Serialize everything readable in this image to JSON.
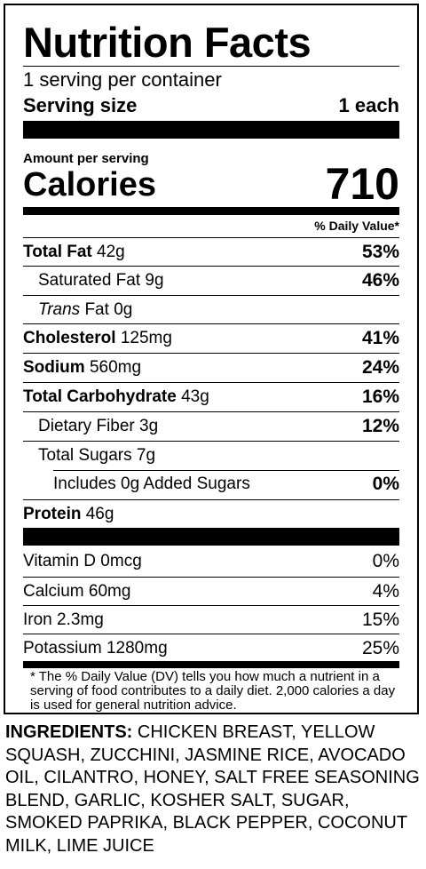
{
  "title": "Nutrition Facts",
  "servings_per_container": "1 serving per container",
  "serving_size": {
    "label": "Serving size",
    "value": "1 each"
  },
  "amount_per_serving": "Amount per serving",
  "calories": {
    "label": "Calories",
    "value": "710"
  },
  "daily_value_header": "% Daily Value*",
  "nutrients": [
    {
      "name": "Total Fat",
      "amount": "42g",
      "dv": "53%"
    },
    {
      "name": "Saturated Fat",
      "amount": "9g",
      "dv": "46%"
    },
    {
      "name_italic": "Trans",
      "name": "Fat",
      "amount": "0g",
      "dv": ""
    },
    {
      "name": "Cholesterol",
      "amount": "125mg",
      "dv": "41%"
    },
    {
      "name": "Sodium",
      "amount": "560mg",
      "dv": "24%"
    },
    {
      "name": "Total Carbohydrate",
      "amount": "43g",
      "dv": "16%"
    },
    {
      "name": "Dietary Fiber",
      "amount": "3g",
      "dv": "12%"
    },
    {
      "name": "Total Sugars",
      "amount": "7g",
      "dv": ""
    },
    {
      "name": "Includes 0g Added Sugars",
      "amount": "",
      "dv": "0%"
    },
    {
      "name": "Protein",
      "amount": "46g",
      "dv": ""
    }
  ],
  "vitamins": [
    {
      "name": "Vitamin D",
      "amount": "0mcg",
      "dv": "0%"
    },
    {
      "name": "Calcium",
      "amount": "60mg",
      "dv": "4%"
    },
    {
      "name": "Iron",
      "amount": "2.3mg",
      "dv": "15%"
    },
    {
      "name": "Potassium",
      "amount": "1280mg",
      "dv": "25%"
    }
  ],
  "footnote": "* The % Daily Value (DV) tells you how much a nutrient in a serving of food contributes to a daily diet. 2,000 calories a day is used for general nutrition advice.",
  "ingredients": {
    "label": "INGREDIENTS:",
    "text": "CHICKEN BREAST, YELLOW SQUASH, ZUCCHINI, JASMINE RICE, AVOCADO OIL, CILANTRO, HONEY, SALT FREE SEASONING BLEND, GARLIC, KOSHER SALT, SUGAR, SMOKED PAPRIKA, BLACK PEPPER, COCONUT MILK, LIME JUICE"
  }
}
